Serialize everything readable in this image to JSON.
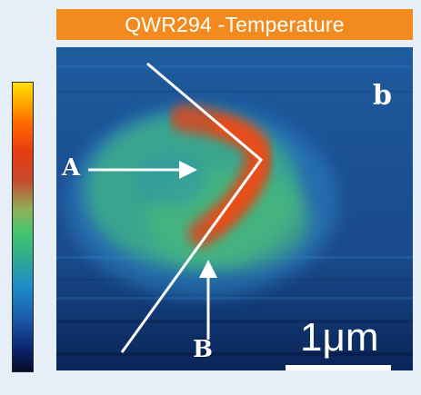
{
  "title": "QWR294 -Temperature",
  "labels": {
    "a": "A",
    "b": "B",
    "panel": "b"
  },
  "scale_bar": {
    "text": "1μm"
  },
  "colors": {
    "title_background": "#f28a1e",
    "page_background": "#e6eef7",
    "annotation": "#ffffff"
  },
  "colorbar": {
    "stops": [
      "#ffe000",
      "#ff6a00",
      "#c54a30",
      "#43c46e",
      "#1d8ec8",
      "#0d2670",
      "#050a2a"
    ]
  }
}
